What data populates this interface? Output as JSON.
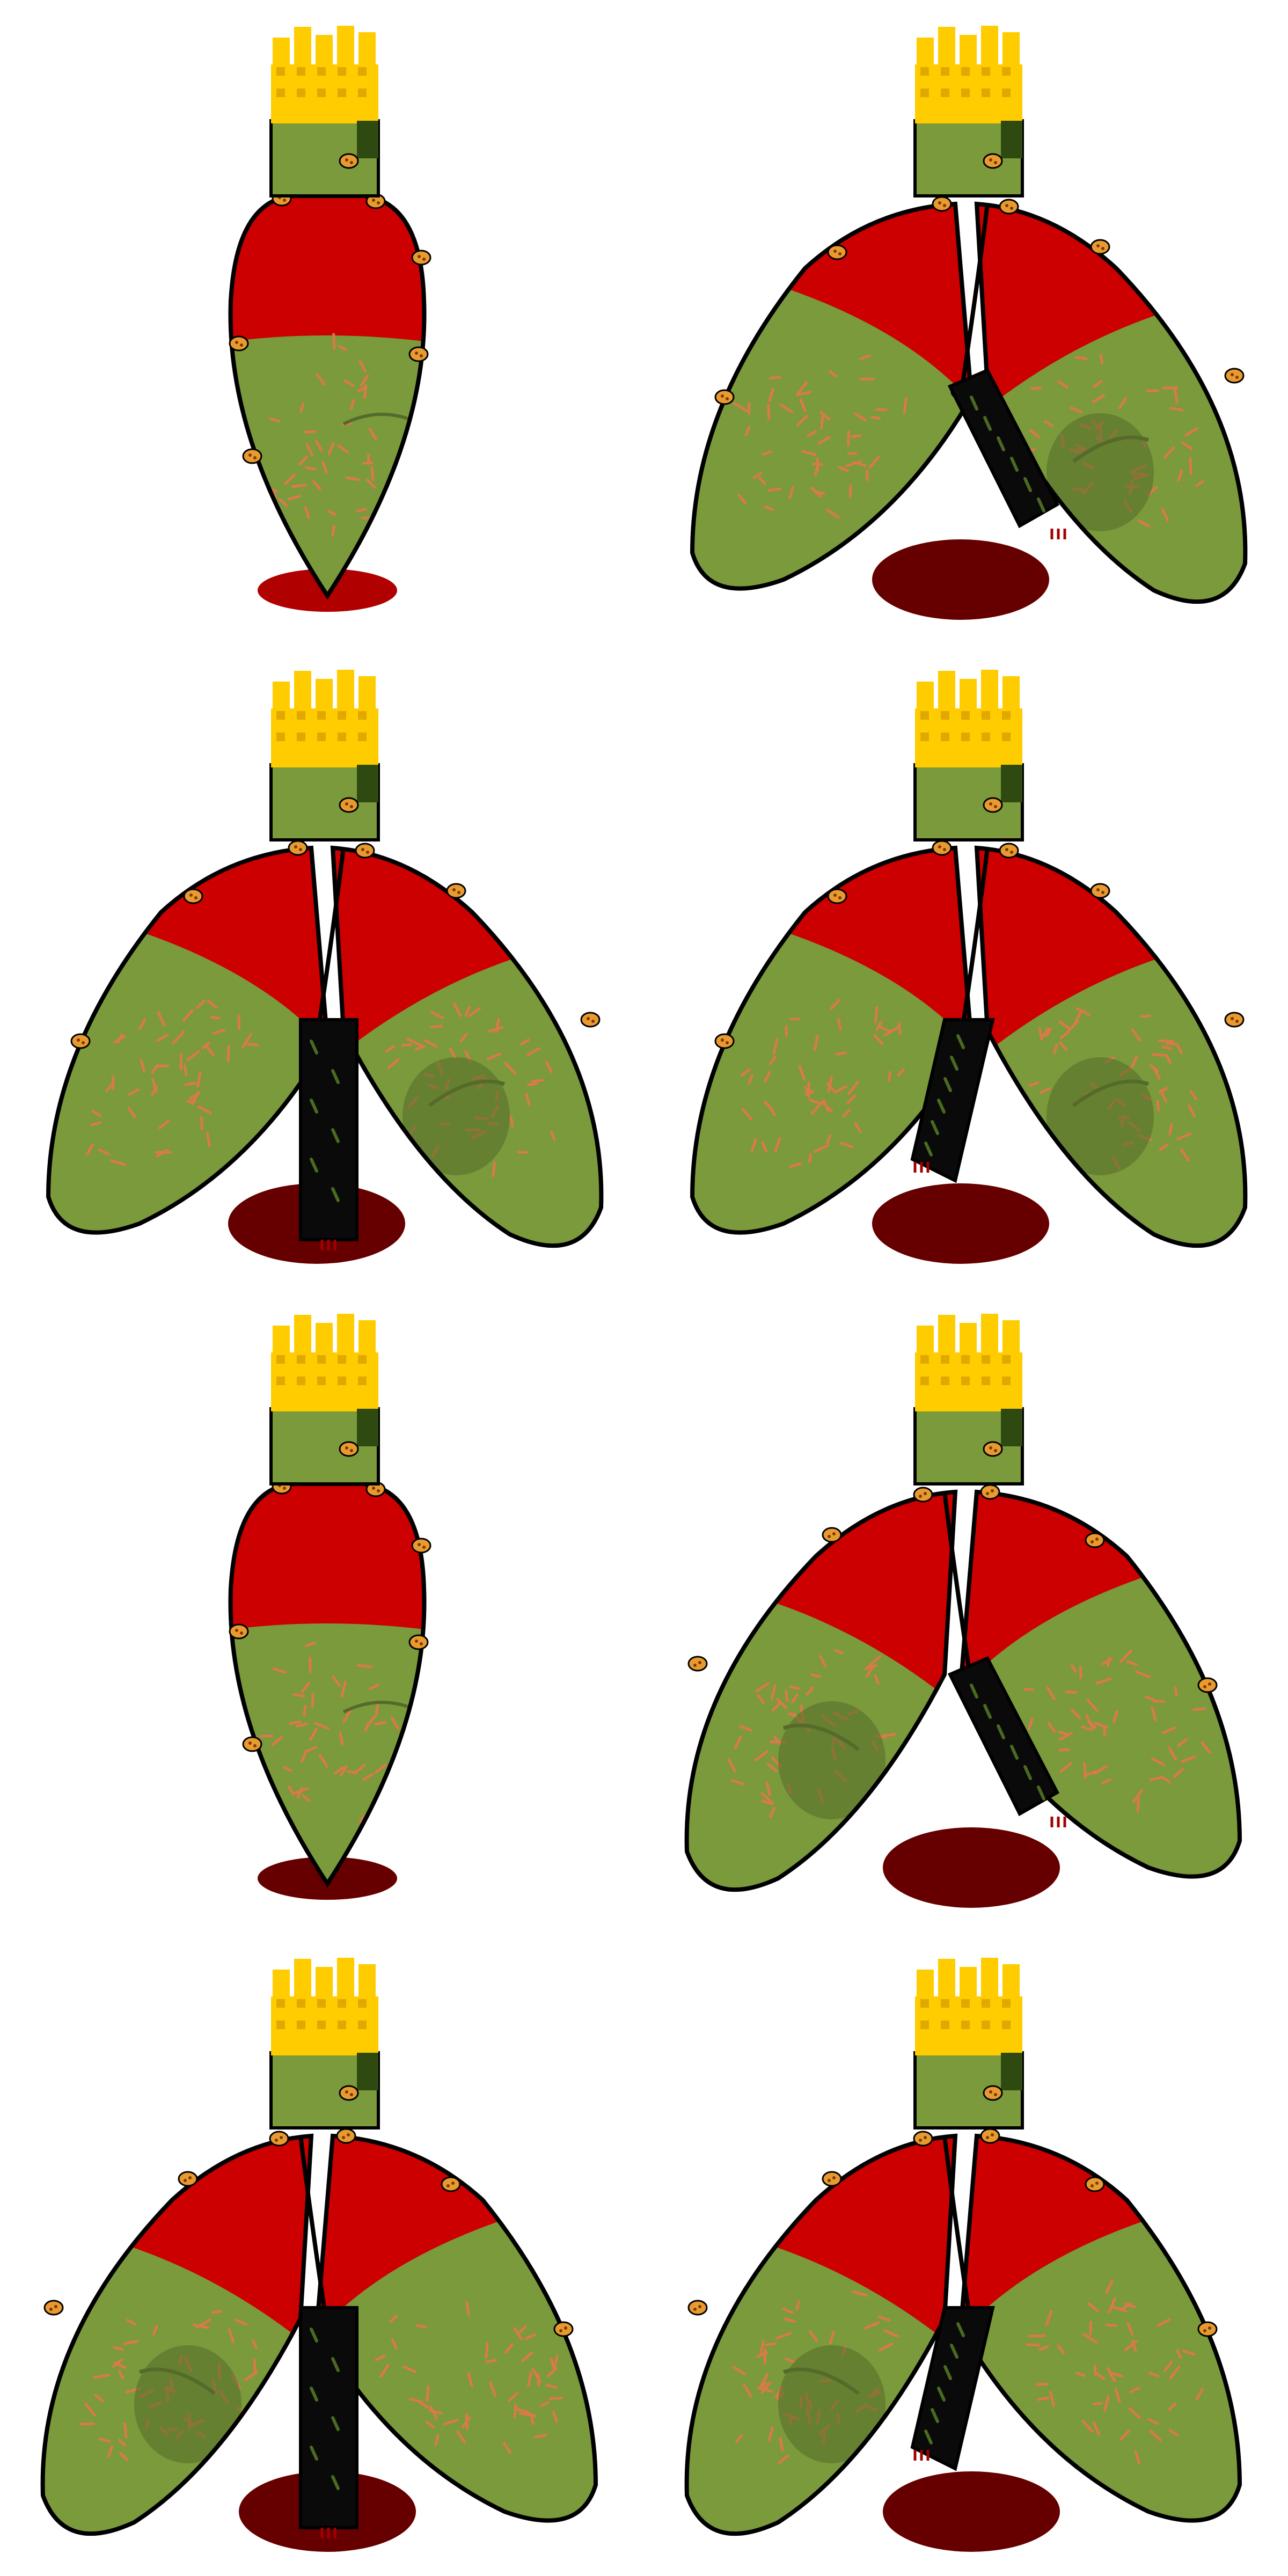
{
  "sprite_sheet": {
    "columns": 2,
    "rows": 4,
    "frames": [
      {
        "pose": "closed",
        "leg": "none",
        "pool": "light"
      },
      {
        "pose": "open",
        "leg": "right",
        "pool": "dark"
      },
      {
        "pose": "open",
        "leg": "center",
        "pool": "dark"
      },
      {
        "pose": "open",
        "leg": "left",
        "pool": "dark"
      },
      {
        "pose": "closed",
        "leg": "none",
        "pool": "dark"
      },
      {
        "pose": "mirror",
        "leg": "right",
        "pool": "dark"
      },
      {
        "pose": "mirror",
        "leg": "center",
        "pool": "dark"
      },
      {
        "pose": "mirror",
        "leg": "left",
        "pool": "dark"
      }
    ]
  },
  "colors": {
    "background": "#ffffff",
    "outline": "#000000",
    "body_green": "#7a9a3c",
    "body_red": "#cc0000",
    "hair_yellow": "#ffcc00",
    "hair_shade": "#e0a800",
    "scratch": "#d87a4a",
    "spot": "#e89a30",
    "pool_light": "#b00000",
    "pool_dark": "#660000",
    "leg_black": "#0a0a0a",
    "leg_marks": "#4a6a20",
    "shadow": "#556b2a",
    "drip": "#a00000"
  }
}
